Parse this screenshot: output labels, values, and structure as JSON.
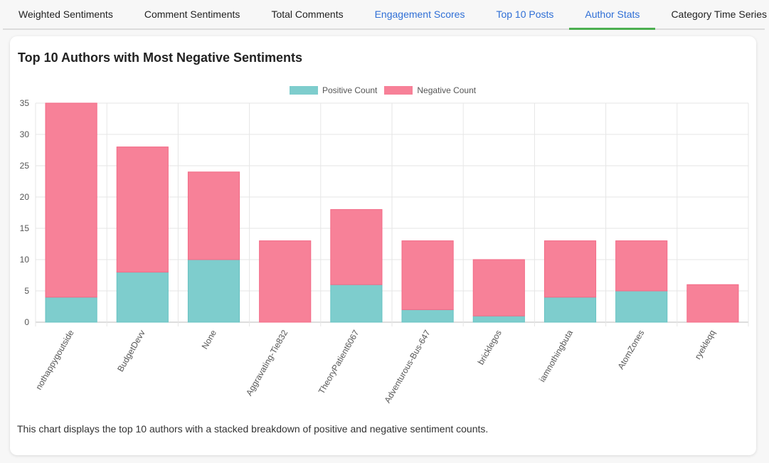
{
  "tabs": [
    {
      "label": "Weighted Sentiments",
      "style": "normal"
    },
    {
      "label": "Comment Sentiments",
      "style": "normal"
    },
    {
      "label": "Total Comments",
      "style": "normal"
    },
    {
      "label": "Engagement Scores",
      "style": "link"
    },
    {
      "label": "Top 10 Posts",
      "style": "link"
    },
    {
      "label": "Author Stats",
      "style": "active"
    },
    {
      "label": "Category Time Series",
      "style": "normal"
    }
  ],
  "card": {
    "title": "Top 10 Authors with Most Negative Sentiments",
    "description": "This chart displays the top 10 authors with a stacked breakdown of positive and negative sentiment counts."
  },
  "colors": {
    "positive": "#7ecdcd",
    "negative": "#f78198",
    "link": "#2f6fd6",
    "active_underline": "#4caf50"
  },
  "chart_data": {
    "type": "bar",
    "stacked": true,
    "categories": [
      "nothappygoutside",
      "BudgetDevv",
      "None",
      "Aggravating-Tie832",
      "TheoryPatient6067",
      "Adventurous-Bus-647",
      "bricklegos",
      "iamnothingbuta",
      "AtomZones",
      "ryekleqq"
    ],
    "series": [
      {
        "name": "Positive Count",
        "values": [
          4,
          8,
          10,
          0,
          6,
          2,
          1,
          4,
          5,
          0
        ]
      },
      {
        "name": "Negative Count",
        "values": [
          31,
          20,
          14,
          13,
          12,
          11,
          9,
          9,
          8,
          6
        ]
      }
    ],
    "ylim": [
      0,
      35
    ],
    "yticks": [
      0,
      5,
      10,
      15,
      20,
      25,
      30,
      35
    ],
    "grid": true,
    "legend": "top-center"
  }
}
